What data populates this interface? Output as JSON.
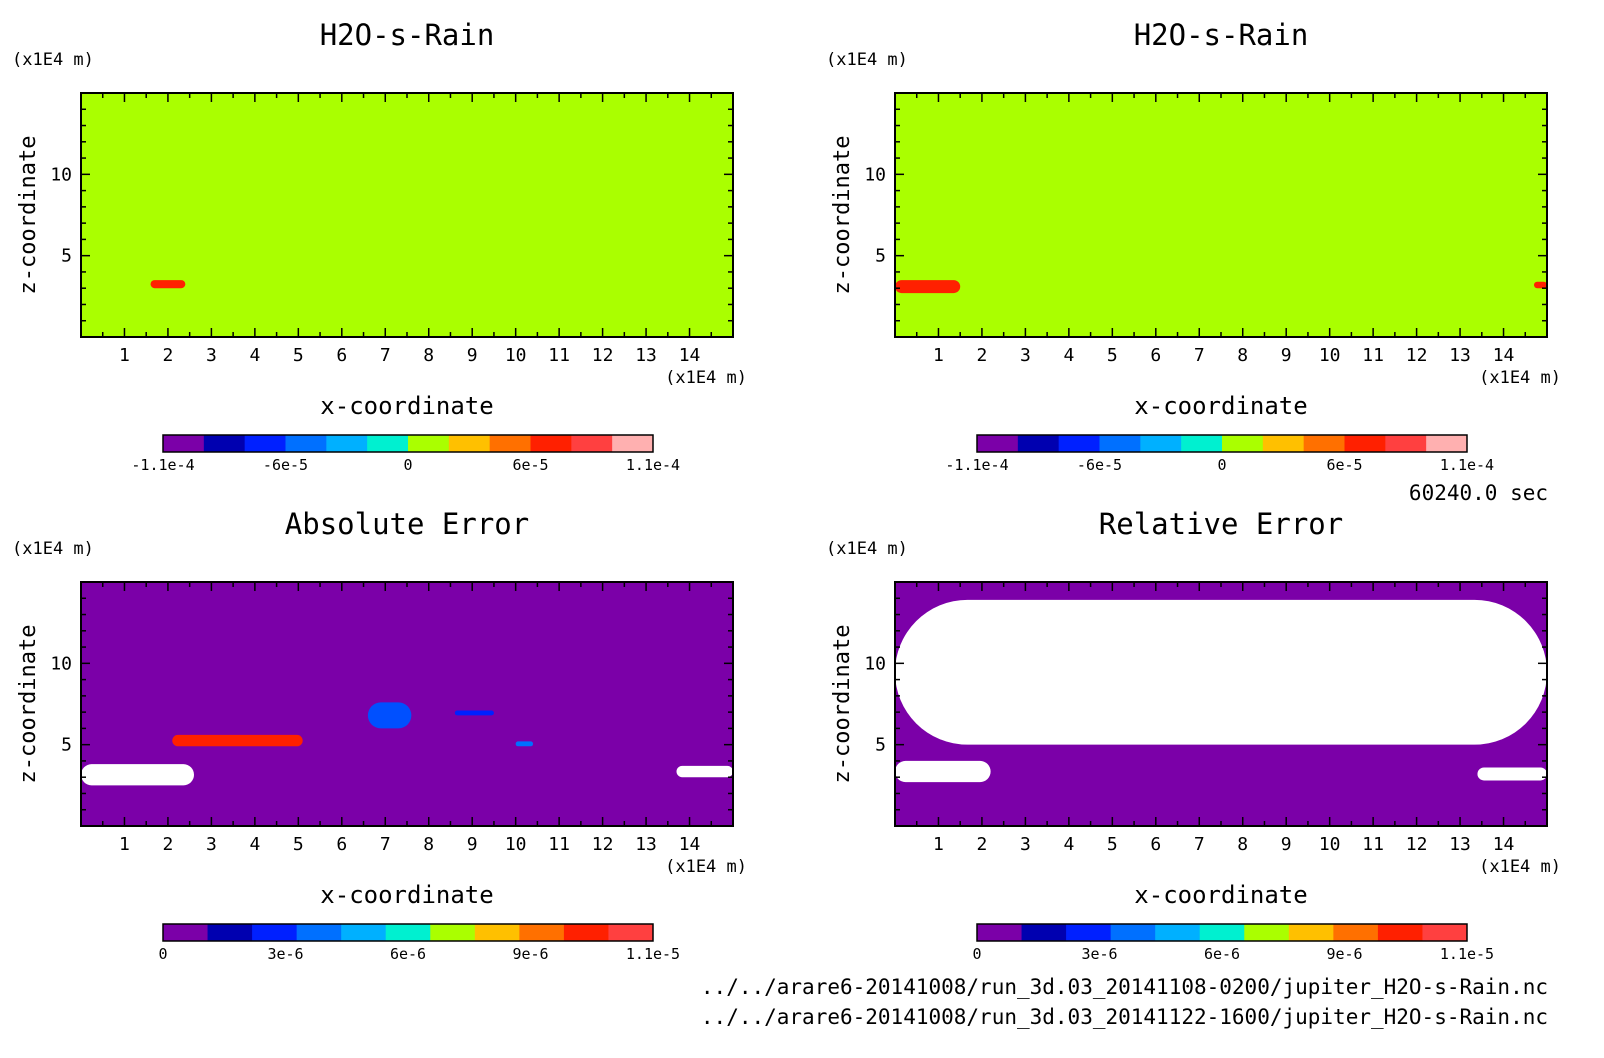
{
  "timestamp": "60240.0 sec",
  "files": [
    "../../arare6-20141008/run_3d.03_20141108-0200/jupiter_H2O-s-Rain.nc",
    "../../arare6-20141008/run_3d.03_20141122-1600/jupiter_H2O-s-Rain.nc"
  ],
  "chart_data": [
    {
      "type": "heatmap",
      "title": "H2O-s-Rain",
      "xlabel": "x-coordinate",
      "ylabel": "z-coordinate",
      "x_unit": "(x1E4 m)",
      "y_unit": "(x1E4 m)",
      "xlim": [
        0,
        15
      ],
      "ylim": [
        0,
        15
      ],
      "xticks": [
        "1",
        "2",
        "3",
        "4",
        "5",
        "6",
        "7",
        "8",
        "9",
        "10",
        "11",
        "12",
        "13",
        "14"
      ],
      "yticks": [
        "5",
        "10"
      ],
      "background_color": "#aaff00",
      "features": [
        {
          "x": [
            1.6,
            2.4
          ],
          "z": [
            3.0,
            3.5
          ],
          "color": "#ff2000"
        }
      ],
      "colorbar": {
        "ticks": [
          "-1.1e-4",
          "-6e-5",
          "0",
          "6e-5",
          "1.1e-4"
        ],
        "colors": [
          "#7b00a8",
          "#0000b0",
          "#0020ff",
          "#0070ff",
          "#00b0ff",
          "#00f0d0",
          "#aaff00",
          "#ffc000",
          "#ff7000",
          "#ff2000",
          "#ff4040",
          "#ffb0b0"
        ]
      }
    },
    {
      "type": "heatmap",
      "title": "H2O-s-Rain",
      "xlabel": "x-coordinate",
      "ylabel": "z-coordinate",
      "x_unit": "(x1E4 m)",
      "y_unit": "(x1E4 m)",
      "xlim": [
        0,
        15
      ],
      "ylim": [
        0,
        15
      ],
      "xticks": [
        "1",
        "2",
        "3",
        "4",
        "5",
        "6",
        "7",
        "8",
        "9",
        "10",
        "11",
        "12",
        "13",
        "14"
      ],
      "yticks": [
        "5",
        "10"
      ],
      "background_color": "#aaff00",
      "features": [
        {
          "x": [
            0.0,
            1.5
          ],
          "z": [
            2.7,
            3.5
          ],
          "color": "#ff2000"
        },
        {
          "x": [
            14.7,
            15.0
          ],
          "z": [
            3.0,
            3.4
          ],
          "color": "#ff2000"
        }
      ],
      "colorbar": {
        "ticks": [
          "-1.1e-4",
          "-6e-5",
          "0",
          "6e-5",
          "1.1e-4"
        ],
        "colors": [
          "#7b00a8",
          "#0000b0",
          "#0020ff",
          "#0070ff",
          "#00b0ff",
          "#00f0d0",
          "#aaff00",
          "#ffc000",
          "#ff7000",
          "#ff2000",
          "#ff4040",
          "#ffb0b0"
        ]
      }
    },
    {
      "type": "heatmap",
      "title": "Absolute Error",
      "xlabel": "x-coordinate",
      "ylabel": "z-coordinate",
      "x_unit": "(x1E4 m)",
      "y_unit": "(x1E4 m)",
      "xlim": [
        0,
        15
      ],
      "ylim": [
        0,
        15
      ],
      "xticks": [
        "1",
        "2",
        "3",
        "4",
        "5",
        "6",
        "7",
        "8",
        "9",
        "10",
        "11",
        "12",
        "13",
        "14"
      ],
      "yticks": [
        "5",
        "10"
      ],
      "background_color": "#7b00a8",
      "features": [
        {
          "x": [
            2.1,
            5.1
          ],
          "z": [
            4.9,
            5.6
          ],
          "color": "#ff2000"
        },
        {
          "x": [
            0.0,
            2.6
          ],
          "z": [
            2.5,
            3.8
          ],
          "color": "#ffffff"
        },
        {
          "x": [
            6.6,
            7.6
          ],
          "z": [
            6.0,
            7.6
          ],
          "color": "#0050ff"
        },
        {
          "x": [
            8.6,
            9.5
          ],
          "z": [
            6.8,
            7.1
          ],
          "color": "#0020ff"
        },
        {
          "x": [
            10.0,
            10.4
          ],
          "z": [
            4.9,
            5.2
          ],
          "color": "#0070ff"
        },
        {
          "x": [
            13.7,
            15.0
          ],
          "z": [
            3.0,
            3.7
          ],
          "color": "#ffffff"
        }
      ],
      "colorbar": {
        "ticks": [
          "0",
          "3e-6",
          "6e-6",
          "9e-6",
          "1.1e-5"
        ],
        "colors": [
          "#7b00a8",
          "#0000b0",
          "#0020ff",
          "#0070ff",
          "#00b0ff",
          "#00f0d0",
          "#aaff00",
          "#ffc000",
          "#ff7000",
          "#ff2000",
          "#ff4040"
        ]
      }
    },
    {
      "type": "heatmap",
      "title": "Relative Error",
      "xlabel": "x-coordinate",
      "ylabel": "z-coordinate",
      "x_unit": "(x1E4 m)",
      "y_unit": "(x1E4 m)",
      "xlim": [
        0,
        15
      ],
      "ylim": [
        0,
        15
      ],
      "xticks": [
        "1",
        "2",
        "3",
        "4",
        "5",
        "6",
        "7",
        "8",
        "9",
        "10",
        "11",
        "12",
        "13",
        "14"
      ],
      "yticks": [
        "5",
        "10"
      ],
      "background_color": "#7b00a8",
      "features": [
        {
          "x": [
            0.0,
            15.0
          ],
          "z": [
            5.0,
            13.9
          ],
          "color": "#ffffff"
        },
        {
          "x": [
            0.0,
            2.2
          ],
          "z": [
            2.7,
            4.0
          ],
          "color": "#ffffff"
        },
        {
          "x": [
            13.4,
            15.0
          ],
          "z": [
            2.8,
            3.6
          ],
          "color": "#ffffff"
        }
      ],
      "colorbar": {
        "ticks": [
          "0",
          "3e-6",
          "6e-6",
          "9e-6",
          "1.1e-5"
        ],
        "colors": [
          "#7b00a8",
          "#0000b0",
          "#0020ff",
          "#0070ff",
          "#00b0ff",
          "#00f0d0",
          "#aaff00",
          "#ffc000",
          "#ff7000",
          "#ff2000",
          "#ff4040"
        ]
      }
    }
  ]
}
